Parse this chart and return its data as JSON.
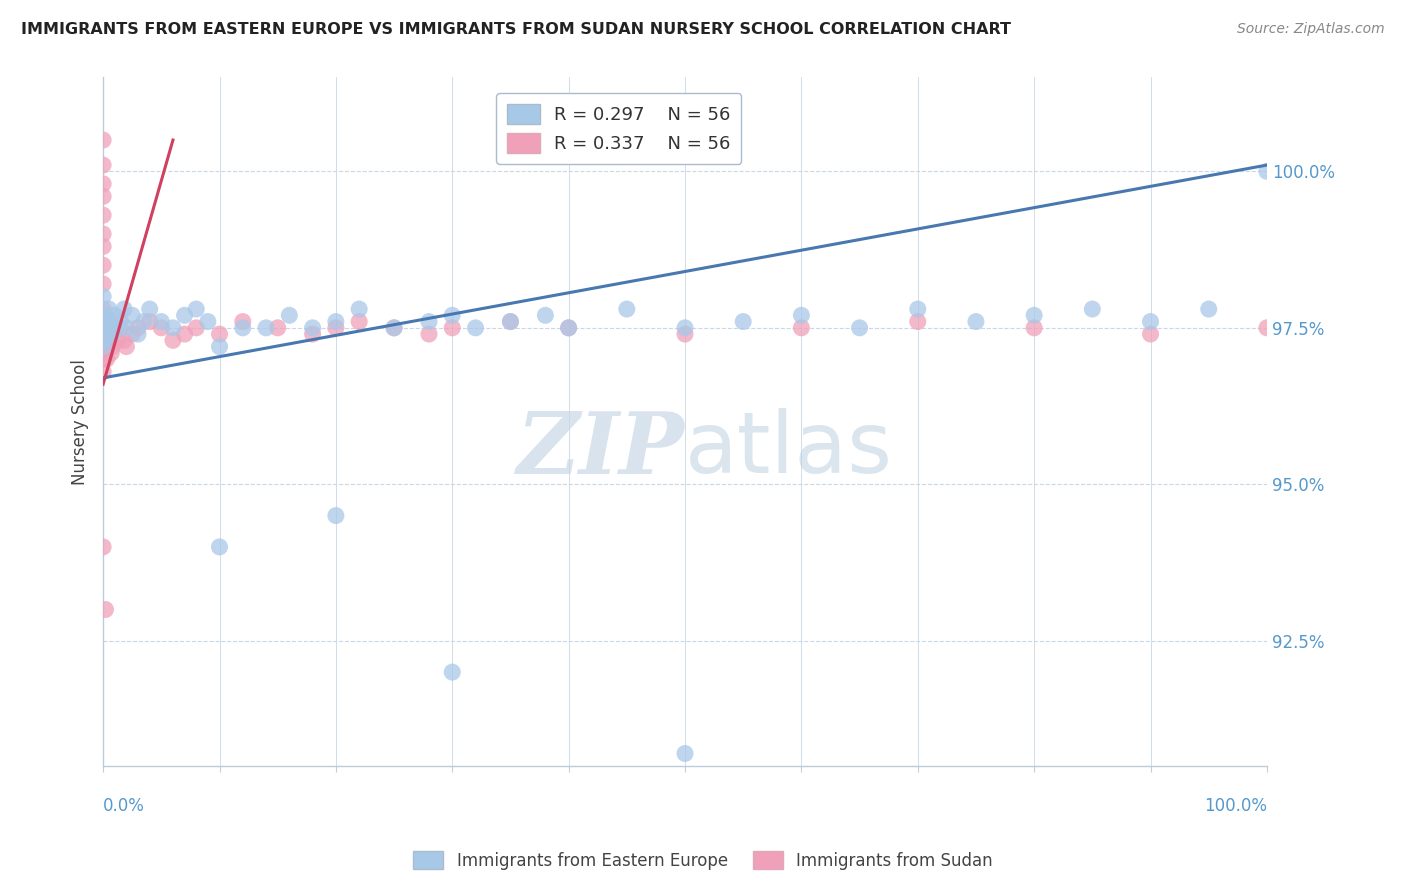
{
  "title": "IMMIGRANTS FROM EASTERN EUROPE VS IMMIGRANTS FROM SUDAN NURSERY SCHOOL CORRELATION CHART",
  "source": "Source: ZipAtlas.com",
  "ylabel": "Nursery School",
  "ytick_labels": [
    "100.0%",
    "97.5%",
    "95.0%",
    "92.5%"
  ],
  "ytick_values": [
    1.0,
    0.975,
    0.95,
    0.925
  ],
  "xlim": [
    0.0,
    1.0
  ],
  "ylim": [
    0.905,
    1.015
  ],
  "legend_blue_r": "R = 0.297",
  "legend_blue_n": "N = 56",
  "legend_pink_r": "R = 0.337",
  "legend_pink_n": "N = 56",
  "blue_color": "#a8c8e8",
  "pink_color": "#f0a0b8",
  "blue_line_color": "#4878b0",
  "pink_line_color": "#d04060",
  "watermark_zip": "ZIP",
  "watermark_atlas": "atlas",
  "background_color": "#ffffff",
  "grid_color": "#c8d8e8",
  "title_color": "#222222",
  "axis_label_color": "#5599cc",
  "source_color": "#888888",
  "ylabel_color": "#444444",
  "legend_text_color": "#333333",
  "legend_r_color": "#4878b0",
  "legend_n_color": "#4878b0",
  "blue_scatter_x": [
    0.0,
    0.0,
    0.0,
    0.001,
    0.001,
    0.002,
    0.003,
    0.004,
    0.005,
    0.006,
    0.007,
    0.008,
    0.01,
    0.012,
    0.015,
    0.018,
    0.02,
    0.025,
    0.03,
    0.035,
    0.04,
    0.05,
    0.06,
    0.07,
    0.08,
    0.09,
    0.1,
    0.12,
    0.14,
    0.16,
    0.18,
    0.2,
    0.22,
    0.25,
    0.28,
    0.3,
    0.32,
    0.35,
    0.38,
    0.4,
    0.45,
    0.5,
    0.55,
    0.6,
    0.65,
    0.7,
    0.75,
    0.8,
    0.85,
    0.9,
    0.95,
    1.0,
    0.1,
    0.2,
    0.3,
    0.5
  ],
  "blue_scatter_y": [
    0.98,
    0.976,
    0.972,
    0.975,
    0.973,
    0.977,
    0.975,
    0.974,
    0.978,
    0.975,
    0.976,
    0.974,
    0.977,
    0.975,
    0.976,
    0.978,
    0.975,
    0.977,
    0.974,
    0.976,
    0.978,
    0.976,
    0.975,
    0.977,
    0.978,
    0.976,
    0.972,
    0.975,
    0.975,
    0.977,
    0.975,
    0.976,
    0.978,
    0.975,
    0.976,
    0.977,
    0.975,
    0.976,
    0.977,
    0.975,
    0.978,
    0.975,
    0.976,
    0.977,
    0.975,
    0.978,
    0.976,
    0.977,
    0.978,
    0.976,
    0.978,
    1.0,
    0.94,
    0.945,
    0.92,
    0.907
  ],
  "pink_scatter_x": [
    0.0,
    0.0,
    0.0,
    0.0,
    0.0,
    0.0,
    0.0,
    0.0,
    0.0,
    0.0,
    0.0,
    0.0,
    0.0,
    0.001,
    0.001,
    0.001,
    0.002,
    0.002,
    0.003,
    0.003,
    0.004,
    0.005,
    0.006,
    0.007,
    0.008,
    0.01,
    0.012,
    0.015,
    0.018,
    0.02,
    0.025,
    0.03,
    0.04,
    0.05,
    0.06,
    0.07,
    0.08,
    0.1,
    0.12,
    0.15,
    0.18,
    0.2,
    0.22,
    0.25,
    0.28,
    0.3,
    0.35,
    0.4,
    0.5,
    0.6,
    0.7,
    0.8,
    0.9,
    1.0,
    0.0,
    0.002
  ],
  "pink_scatter_y": [
    1.005,
    1.001,
    0.998,
    0.996,
    0.993,
    0.99,
    0.988,
    0.985,
    0.982,
    0.978,
    0.975,
    0.972,
    0.968,
    0.976,
    0.972,
    0.97,
    0.975,
    0.971,
    0.974,
    0.97,
    0.972,
    0.974,
    0.973,
    0.971,
    0.972,
    0.975,
    0.973,
    0.975,
    0.973,
    0.972,
    0.974,
    0.975,
    0.976,
    0.975,
    0.973,
    0.974,
    0.975,
    0.974,
    0.976,
    0.975,
    0.974,
    0.975,
    0.976,
    0.975,
    0.974,
    0.975,
    0.976,
    0.975,
    0.974,
    0.975,
    0.976,
    0.975,
    0.974,
    0.975,
    0.94,
    0.93
  ],
  "blue_trend_x": [
    0.0,
    1.0
  ],
  "blue_trend_y": [
    0.967,
    1.001
  ],
  "pink_trend_x": [
    0.0,
    0.06
  ],
  "pink_trend_y": [
    0.966,
    1.005
  ]
}
